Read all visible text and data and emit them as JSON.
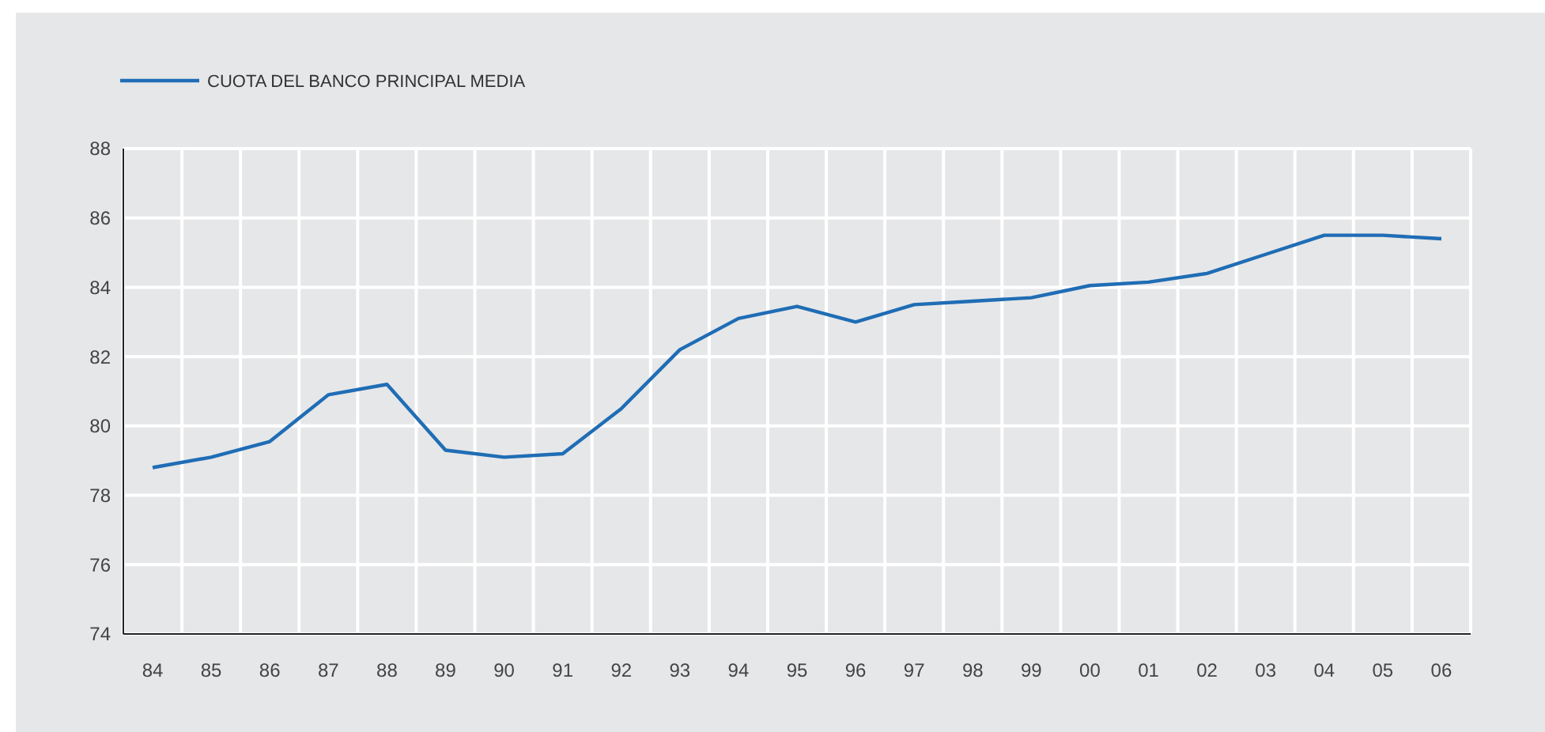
{
  "chart_data": {
    "type": "line",
    "categories": [
      "84",
      "85",
      "86",
      "87",
      "88",
      "89",
      "90",
      "91",
      "92",
      "93",
      "94",
      "95",
      "96",
      "97",
      "98",
      "99",
      "00",
      "01",
      "02",
      "03",
      "04",
      "05",
      "06"
    ],
    "series": [
      {
        "name": "CUOTA DEL BANCO PRINCIPAL MEDIA",
        "color": "#1f6db5",
        "values": [
          78.8,
          79.1,
          79.55,
          80.9,
          81.2,
          79.3,
          79.1,
          79.2,
          80.5,
          82.2,
          83.1,
          83.45,
          83.0,
          83.5,
          83.6,
          83.7,
          84.05,
          84.15,
          84.4,
          84.95,
          85.5,
          85.5,
          85.4
        ]
      }
    ],
    "ylim": [
      74,
      88
    ],
    "yticks": [
      74,
      76,
      78,
      80,
      82,
      84,
      86,
      88
    ],
    "grid": true,
    "legend": "top left",
    "marker": "none",
    "line_style": "solid"
  }
}
